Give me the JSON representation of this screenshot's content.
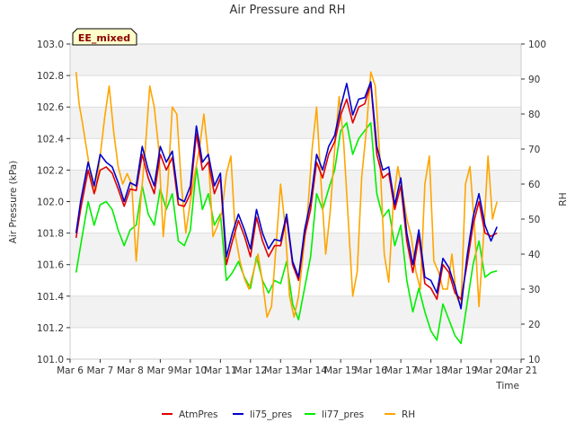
{
  "chart_data": {
    "type": "line",
    "title": "Air Pressure and RH",
    "xlabel": "Time",
    "ylabel": "Air Pressure (kPa)",
    "y2label": "RH",
    "badge": "EE_mixed",
    "xlim": [
      0,
      15
    ],
    "ylim": [
      101.0,
      103.0
    ],
    "y2lim": [
      10,
      100
    ],
    "x_ticks": [
      0,
      1,
      2,
      3,
      4,
      5,
      6,
      7,
      8,
      9,
      10,
      11,
      12,
      13,
      14,
      15
    ],
    "x_tick_labels": [
      "Mar 6",
      "Mar 7",
      "Mar 8",
      "Mar 9",
      "Mar 10",
      "Mar 11",
      "Mar 12",
      "Mar 13",
      "Mar 14",
      "Mar 15",
      "Mar 16",
      "Mar 17",
      "Mar 18",
      "Mar 19",
      "Mar 20",
      "Mar 21"
    ],
    "y_ticks": [
      101.0,
      101.2,
      101.4,
      101.6,
      101.8,
      102.0,
      102.2,
      102.4,
      102.6,
      102.8,
      103.0
    ],
    "y_tick_labels": [
      "101.0",
      "101.2",
      "101.4",
      "101.6",
      "101.8",
      "102.0",
      "102.2",
      "102.4",
      "102.6",
      "102.8",
      "103.0"
    ],
    "y2_ticks": [
      10,
      20,
      30,
      40,
      50,
      60,
      70,
      80,
      90,
      100
    ],
    "y2_tick_labels": [
      "10",
      "20",
      "30",
      "40",
      "50",
      "60",
      "70",
      "80",
      "90",
      "100"
    ],
    "grid": true,
    "legend_position": "bottom",
    "series": [
      {
        "name": "AtmPres",
        "color": "#e00000",
        "axis": "left",
        "x": [
          0.2,
          0.35,
          0.6,
          0.8,
          1.0,
          1.2,
          1.4,
          1.6,
          1.8,
          2.0,
          2.2,
          2.4,
          2.6,
          2.8,
          3.0,
          3.2,
          3.4,
          3.6,
          3.8,
          4.0,
          4.2,
          4.4,
          4.6,
          4.8,
          5.0,
          5.2,
          5.4,
          5.6,
          5.8,
          6.0,
          6.2,
          6.4,
          6.6,
          6.8,
          7.0,
          7.2,
          7.4,
          7.6,
          7.8,
          8.0,
          8.2,
          8.4,
          8.6,
          8.8,
          9.0,
          9.2,
          9.4,
          9.6,
          9.8,
          10.0,
          10.2,
          10.4,
          10.6,
          10.8,
          11.0,
          11.2,
          11.4,
          11.6,
          11.8,
          12.0,
          12.2,
          12.4,
          12.6,
          12.8,
          13.0,
          13.2,
          13.4,
          13.6,
          13.8,
          14.0,
          14.2
        ],
        "y": [
          101.77,
          101.95,
          102.2,
          102.05,
          102.2,
          102.22,
          102.18,
          102.08,
          101.97,
          102.08,
          102.07,
          102.3,
          102.15,
          102.05,
          102.3,
          102.2,
          102.28,
          101.98,
          101.97,
          102.05,
          102.43,
          102.2,
          102.25,
          102.05,
          102.15,
          101.6,
          101.75,
          101.88,
          101.78,
          101.65,
          101.9,
          101.75,
          101.65,
          101.72,
          101.72,
          101.9,
          101.6,
          101.5,
          101.78,
          101.95,
          102.25,
          102.15,
          102.3,
          102.38,
          102.55,
          102.65,
          102.5,
          102.6,
          102.62,
          102.75,
          102.3,
          102.15,
          102.18,
          101.95,
          102.1,
          101.75,
          101.55,
          101.78,
          101.48,
          101.45,
          101.38,
          101.6,
          101.55,
          101.42,
          101.38,
          101.6,
          101.85,
          102.0,
          101.8,
          101.78,
          101.8
        ]
      },
      {
        "name": "li75_pres",
        "color": "#0000cc",
        "axis": "left",
        "x": [
          0.2,
          0.35,
          0.6,
          0.8,
          1.0,
          1.2,
          1.4,
          1.6,
          1.8,
          2.0,
          2.2,
          2.4,
          2.6,
          2.8,
          3.0,
          3.2,
          3.4,
          3.6,
          3.8,
          4.0,
          4.2,
          4.4,
          4.6,
          4.8,
          5.0,
          5.2,
          5.4,
          5.6,
          5.8,
          6.0,
          6.2,
          6.4,
          6.6,
          6.8,
          7.0,
          7.2,
          7.4,
          7.6,
          7.8,
          8.0,
          8.2,
          8.4,
          8.6,
          8.8,
          9.0,
          9.2,
          9.4,
          9.6,
          9.8,
          10.0,
          10.2,
          10.4,
          10.6,
          10.8,
          11.0,
          11.2,
          11.4,
          11.6,
          11.8,
          12.0,
          12.2,
          12.4,
          12.6,
          12.8,
          13.0,
          13.2,
          13.4,
          13.6,
          13.8,
          14.0,
          14.2
        ],
        "y": [
          101.8,
          102.0,
          102.25,
          102.1,
          102.3,
          102.25,
          102.22,
          102.12,
          102.0,
          102.12,
          102.1,
          102.35,
          102.2,
          102.1,
          102.35,
          102.25,
          102.32,
          102.02,
          102.0,
          102.1,
          102.48,
          102.25,
          102.3,
          102.1,
          102.18,
          101.65,
          101.8,
          101.92,
          101.82,
          101.7,
          101.95,
          101.8,
          101.7,
          101.76,
          101.75,
          101.92,
          101.62,
          101.52,
          101.82,
          102.0,
          102.3,
          102.2,
          102.35,
          102.42,
          102.6,
          102.75,
          102.55,
          102.65,
          102.66,
          102.76,
          102.35,
          102.2,
          102.22,
          101.98,
          102.15,
          101.8,
          101.6,
          101.82,
          101.52,
          101.5,
          101.42,
          101.64,
          101.58,
          101.46,
          101.32,
          101.65,
          101.9,
          102.05,
          101.85,
          101.75,
          101.84
        ]
      },
      {
        "name": "li77_pres",
        "color": "#00ee00",
        "axis": "left",
        "x": [
          0.2,
          0.35,
          0.6,
          0.8,
          1.0,
          1.2,
          1.4,
          1.6,
          1.8,
          2.0,
          2.2,
          2.4,
          2.6,
          2.8,
          3.0,
          3.2,
          3.4,
          3.6,
          3.8,
          4.0,
          4.2,
          4.4,
          4.6,
          4.8,
          5.0,
          5.2,
          5.4,
          5.6,
          5.8,
          6.0,
          6.2,
          6.4,
          6.6,
          6.8,
          7.0,
          7.2,
          7.4,
          7.6,
          7.8,
          8.0,
          8.2,
          8.4,
          8.6,
          8.8,
          9.0,
          9.2,
          9.4,
          9.6,
          9.8,
          10.0,
          10.2,
          10.4,
          10.6,
          10.8,
          11.0,
          11.2,
          11.4,
          11.6,
          11.8,
          12.0,
          12.2,
          12.4,
          12.6,
          12.8,
          13.0,
          13.2,
          13.4,
          13.6,
          13.8,
          14.0,
          14.2
        ],
        "y": [
          101.55,
          101.72,
          102.0,
          101.85,
          101.98,
          102.0,
          101.95,
          101.82,
          101.72,
          101.82,
          101.85,
          102.1,
          101.92,
          101.85,
          102.08,
          101.95,
          102.05,
          101.75,
          101.72,
          101.82,
          102.22,
          101.95,
          102.05,
          101.85,
          101.92,
          101.5,
          101.55,
          101.62,
          101.52,
          101.45,
          101.65,
          101.5,
          101.42,
          101.5,
          101.48,
          101.62,
          101.35,
          101.25,
          101.45,
          101.65,
          102.05,
          101.95,
          102.08,
          102.2,
          102.45,
          102.5,
          102.3,
          102.4,
          102.45,
          102.5,
          102.05,
          101.9,
          101.95,
          101.72,
          101.85,
          101.5,
          101.3,
          101.45,
          101.3,
          101.18,
          101.12,
          101.35,
          101.25,
          101.15,
          101.1,
          101.35,
          101.6,
          101.75,
          101.52,
          101.55,
          101.56
        ]
      },
      {
        "name": "RH",
        "color": "#ffa500",
        "axis": "right",
        "x": [
          0.2,
          0.3,
          0.4,
          0.55,
          0.7,
          0.85,
          1.0,
          1.15,
          1.3,
          1.45,
          1.6,
          1.75,
          1.9,
          2.05,
          2.2,
          2.35,
          2.5,
          2.65,
          2.8,
          2.95,
          3.1,
          3.25,
          3.4,
          3.55,
          3.7,
          3.85,
          4.0,
          4.15,
          4.3,
          4.45,
          4.6,
          4.75,
          4.9,
          5.05,
          5.2,
          5.35,
          5.5,
          5.65,
          5.8,
          5.95,
          6.1,
          6.25,
          6.4,
          6.55,
          6.7,
          6.85,
          7.0,
          7.15,
          7.3,
          7.45,
          7.6,
          7.75,
          7.9,
          8.05,
          8.2,
          8.35,
          8.5,
          8.65,
          8.8,
          8.95,
          9.1,
          9.25,
          9.4,
          9.55,
          9.7,
          9.85,
          10.0,
          10.15,
          10.3,
          10.45,
          10.6,
          10.75,
          10.9,
          11.05,
          11.2,
          11.35,
          11.5,
          11.65,
          11.8,
          11.95,
          12.1,
          12.25,
          12.4,
          12.55,
          12.7,
          12.85,
          13.0,
          13.15,
          13.3,
          13.45,
          13.6,
          13.75,
          13.9,
          14.05,
          14.2
        ],
        "y": [
          92,
          83,
          78,
          70,
          62,
          58,
          68,
          79,
          88,
          75,
          65,
          60,
          63,
          60,
          38,
          55,
          70,
          88,
          82,
          70,
          45,
          60,
          82,
          80,
          60,
          46,
          55,
          63,
          70,
          80,
          68,
          45,
          48,
          52,
          63,
          68,
          45,
          38,
          33,
          30,
          35,
          40,
          32,
          22,
          25,
          42,
          60,
          48,
          28,
          22,
          28,
          40,
          52,
          70,
          82,
          60,
          40,
          52,
          70,
          85,
          72,
          50,
          28,
          35,
          62,
          75,
          92,
          88,
          68,
          40,
          32,
          55,
          65,
          58,
          50,
          45,
          35,
          30,
          60,
          68,
          38,
          35,
          30,
          30,
          40,
          28,
          25,
          60,
          65,
          48,
          25,
          45,
          68,
          50,
          55
        ]
      }
    ]
  }
}
